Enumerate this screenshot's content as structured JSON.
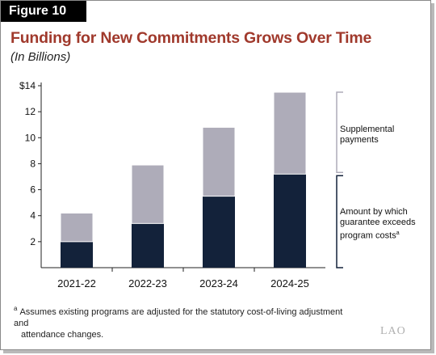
{
  "figure_label": "Figure 10",
  "chart_data": {
    "type": "bar",
    "stacked": true,
    "title": "Funding for New Commitments Grows Over Time",
    "subtitle": "(In Billions)",
    "categories": [
      "2021-22",
      "2022-23",
      "2023-24",
      "2024-25"
    ],
    "series": [
      {
        "name": "Amount by which guarantee exceeds program costs",
        "values": [
          2.0,
          3.4,
          5.5,
          7.2
        ],
        "color": "#13223a"
      },
      {
        "name": "Supplemental payments",
        "values": [
          2.2,
          4.5,
          5.3,
          6.3
        ],
        "color": "#aeacb9"
      }
    ],
    "ylim": [
      0,
      14
    ],
    "yticks": [
      {
        "value": 2,
        "label": "2"
      },
      {
        "value": 4,
        "label": "4"
      },
      {
        "value": 6,
        "label": "6"
      },
      {
        "value": 8,
        "label": "8"
      },
      {
        "value": 10,
        "label": "10"
      },
      {
        "value": 12,
        "label": "12"
      },
      {
        "value": 14,
        "label": "$14"
      }
    ],
    "legend_placement": "right, bracket labels",
    "legend": {
      "supplemental_line1": "Supplemental",
      "supplemental_line2": "payments",
      "exceeds_line1": "Amount by which",
      "exceeds_line2": "guarantee exceeds",
      "exceeds_line3": "program costs",
      "exceeds_mark": "a"
    },
    "grid": false
  },
  "footnote": {
    "mark": "a",
    "line1": "Assumes existing programs are adjusted for the statutory cost-of-living adjustment and",
    "line2": "attendance changes."
  },
  "logo_text": "LAO"
}
